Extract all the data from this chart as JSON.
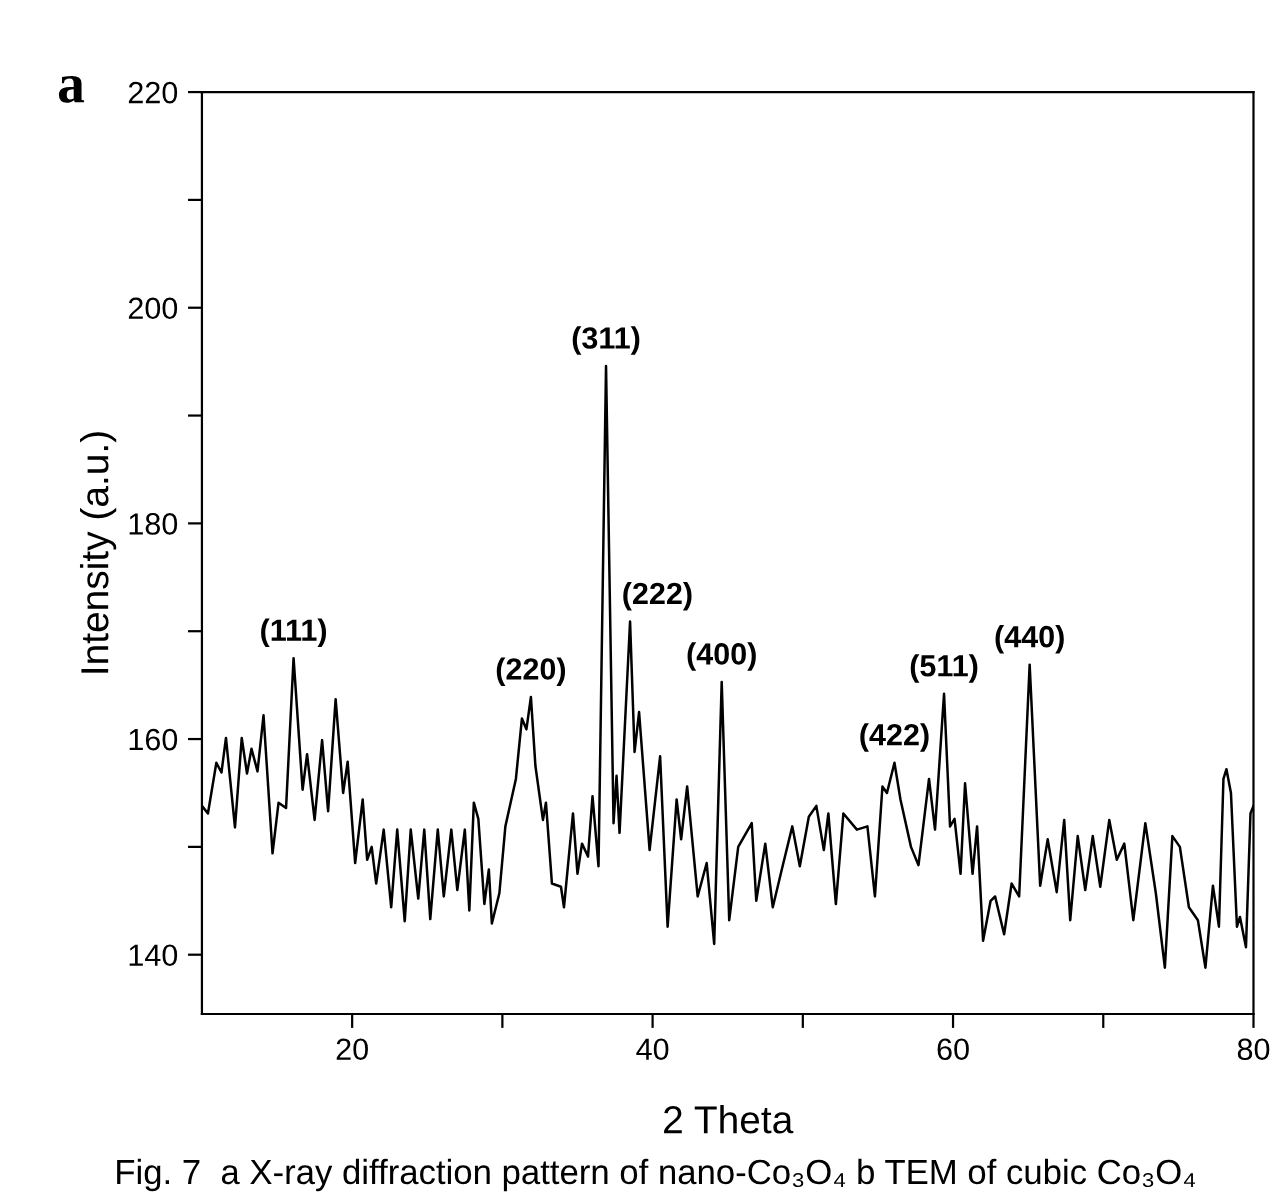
{
  "chart_data": {
    "type": "line",
    "xlabel": "2 Theta",
    "ylabel": "Intensity (a.u.)",
    "xlim": [
      10,
      80
    ],
    "xticks": [
      {
        "value": 20,
        "label": "20"
      },
      {
        "value": 30,
        "label": null
      },
      {
        "value": 40,
        "label": "40"
      },
      {
        "value": 50,
        "label": null
      },
      {
        "value": 60,
        "label": "60"
      },
      {
        "value": 70,
        "label": null
      },
      {
        "value": 80,
        "label": "80"
      }
    ],
    "ylim": [
      134.5,
      220
    ],
    "yticks": [
      140,
      {
        "value": 150,
        "label": null
      },
      160,
      {
        "value": 170,
        "label": null
      },
      180,
      {
        "value": 190,
        "label": null
      },
      200,
      {
        "value": 210,
        "label": null
      },
      220
    ],
    "grid": false,
    "legend": false,
    "marker": "none",
    "line_style": "solid",
    "series": [
      {
        "color": "#000000",
        "x": [
          10,
          10.4,
          10.96,
          11.3,
          11.6,
          12.2,
          12.65,
          13.0,
          13.3,
          13.7,
          14.1,
          14.7,
          15.1,
          15.6,
          16.1,
          16.7,
          17.0,
          17.5,
          18.0,
          18.4,
          18.9,
          19.4,
          19.7,
          20.2,
          20.7,
          21.0,
          21.3,
          21.6,
          22.1,
          22.6,
          23.0,
          23.5,
          23.9,
          24.4,
          24.8,
          25.2,
          25.7,
          26.1,
          26.6,
          27.0,
          27.5,
          27.8,
          28.1,
          28.4,
          28.8,
          29.1,
          29.3,
          29.8,
          30.2,
          30.9,
          31.3,
          31.6,
          31.9,
          32.2,
          32.7,
          32.9,
          33.3,
          33.9,
          34.1,
          34.7,
          35.0,
          35.3,
          35.7,
          36.0,
          36.4,
          36.9,
          37.4,
          37.6,
          37.8,
          38.5,
          38.8,
          39.1,
          39.8,
          40.5,
          41.0,
          41.6,
          41.9,
          42.3,
          43.0,
          43.6,
          44.1,
          44.6,
          45.1,
          45.7,
          46.6,
          46.9,
          47.5,
          48.0,
          48.6,
          49.3,
          49.8,
          50.4,
          50.9,
          51.4,
          51.7,
          52.2,
          52.7,
          53.6,
          54.3,
          54.8,
          55.3,
          55.6,
          56.1,
          56.5,
          57.2,
          57.7,
          58.4,
          58.8,
          59.4,
          59.8,
          60.1,
          60.5,
          60.8,
          61.3,
          61.6,
          62.0,
          62.5,
          62.8,
          63.4,
          63.9,
          64.4,
          65.1,
          65.8,
          66.3,
          66.9,
          67.4,
          67.8,
          68.3,
          68.8,
          69.3,
          69.8,
          70.4,
          70.9,
          71.4,
          72.0,
          72.8,
          73.5,
          74.1,
          74.6,
          75.1,
          75.7,
          76.3,
          76.8,
          77.3,
          77.7,
          78.0,
          78.2,
          78.5,
          78.9,
          79.1,
          79.5,
          79.8,
          80.0
        ],
        "values": [
          153.8,
          153.1,
          157.8,
          156.9,
          160.1,
          151.8,
          160.1,
          156.8,
          159.1,
          157.0,
          162.2,
          149.4,
          154.1,
          153.6,
          167.5,
          155.3,
          158.6,
          152.5,
          159.9,
          153.3,
          163.7,
          155.0,
          157.9,
          148.5,
          154.4,
          148.8,
          150.0,
          146.6,
          151.6,
          144.4,
          151.6,
          143.1,
          151.6,
          145.2,
          151.6,
          143.3,
          151.6,
          145.4,
          151.6,
          146.0,
          151.6,
          144.1,
          154.1,
          152.6,
          144.7,
          147.9,
          142.9,
          145.7,
          151.9,
          156.3,
          161.9,
          160.9,
          163.9,
          157.5,
          152.5,
          154.1,
          146.6,
          146.3,
          144.4,
          153.1,
          147.5,
          150.3,
          149.1,
          154.7,
          148.2,
          194.6,
          152.2,
          156.6,
          151.3,
          170.9,
          158.8,
          162.5,
          149.7,
          158.4,
          142.6,
          154.4,
          150.7,
          155.6,
          145.4,
          148.5,
          141.0,
          165.3,
          143.2,
          150.0,
          152.2,
          145.0,
          150.3,
          144.4,
          147.9,
          151.9,
          148.2,
          152.8,
          153.8,
          149.7,
          153.1,
          144.7,
          153.1,
          151.6,
          151.9,
          145.4,
          155.6,
          155.0,
          157.8,
          154.4,
          150.0,
          148.3,
          156.3,
          151.6,
          164.2,
          151.9,
          152.6,
          147.5,
          155.9,
          147.5,
          151.9,
          141.3,
          145.0,
          145.4,
          141.9,
          146.6,
          145.4,
          166.9,
          146.4,
          150.7,
          145.8,
          152.5,
          143.2,
          151.0,
          146.0,
          151.0,
          146.3,
          152.5,
          148.8,
          150.3,
          143.2,
          152.2,
          145.7,
          138.8,
          151.0,
          150.0,
          144.4,
          143.2,
          138.8,
          146.4,
          142.6,
          156.3,
          157.2,
          155.0,
          142.6,
          143.5,
          140.7,
          153.1,
          153.8
        ]
      }
    ],
    "annotations": [
      "a",
      {
        "text": "(111)",
        "x": 16.1,
        "y": 167.5
      },
      {
        "text": "(220)",
        "x": 31.9,
        "y": 163.9
      },
      {
        "text": "(311)",
        "x": 36.9,
        "y": 194.6
      },
      {
        "text": "(222)",
        "x": 38.5,
        "y": 170.9
      },
      {
        "text": "(400)",
        "x": 44.6,
        "y": 165.3
      },
      {
        "text": "(422)",
        "x": 56.1,
        "y": 157.8
      },
      {
        "text": "(511)",
        "x": 59.4,
        "y": 164.2
      },
      {
        "text": "(440)",
        "x": 65.1,
        "y": 166.9
      },
      "Fig. 7  a X-ray diffraction pattern of nano-Co₃O₄ b TEM of cubic Co₃O₄"
    ]
  }
}
